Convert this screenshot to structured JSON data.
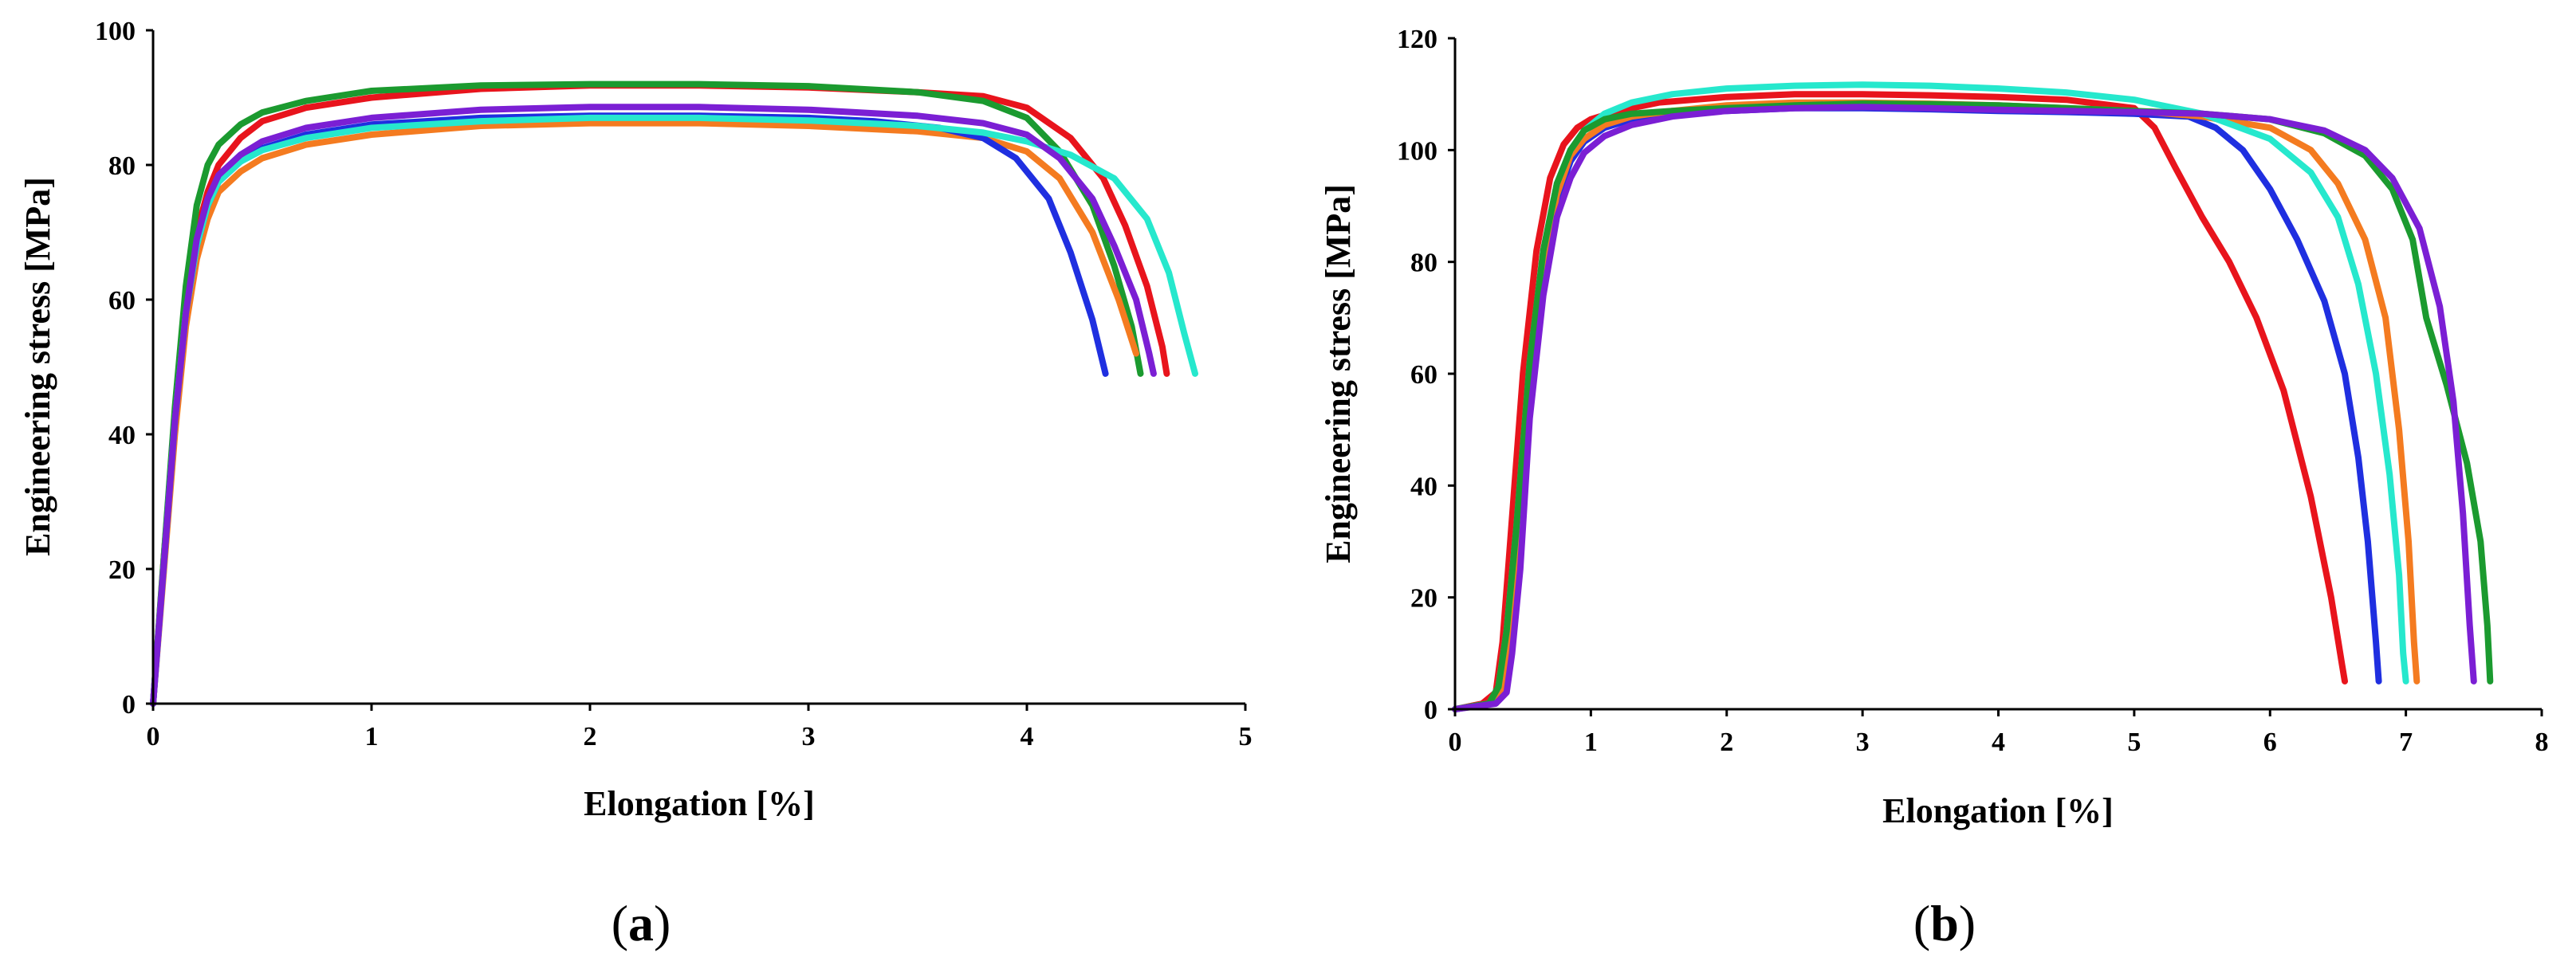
{
  "chart_data": [
    {
      "id": "a",
      "type": "line",
      "caption_letter": "a",
      "xlabel": "Elongation [%]",
      "ylabel": "Engineering stress [MPa]",
      "xlim": [
        0,
        5
      ],
      "ylim": [
        0,
        100
      ],
      "xticks": [
        0,
        1,
        2,
        3,
        4,
        5
      ],
      "yticks": [
        0,
        20,
        40,
        60,
        80,
        100
      ],
      "grid": false,
      "series": [
        {
          "name": "red",
          "color": "#e8141c",
          "x": [
            0,
            0.05,
            0.1,
            0.15,
            0.2,
            0.25,
            0.3,
            0.4,
            0.5,
            0.7,
            1,
            1.5,
            2,
            2.5,
            3,
            3.5,
            3.8,
            4.0,
            4.2,
            4.35,
            4.45,
            4.55,
            4.62,
            4.64
          ],
          "y": [
            0,
            22,
            42,
            58,
            70,
            76,
            80,
            84,
            86.5,
            88.5,
            90,
            91.3,
            91.8,
            91.8,
            91.5,
            90.8,
            90.2,
            88.5,
            84,
            78,
            71,
            62,
            53,
            49
          ]
        },
        {
          "name": "green",
          "color": "#1b9a2f",
          "x": [
            0,
            0.05,
            0.1,
            0.15,
            0.2,
            0.25,
            0.3,
            0.4,
            0.5,
            0.7,
            1,
            1.5,
            2,
            2.5,
            3,
            3.5,
            3.8,
            4.0,
            4.15,
            4.3,
            4.4,
            4.48,
            4.52
          ],
          "y": [
            0,
            22,
            44,
            62,
            74,
            80,
            83,
            86,
            87.8,
            89.5,
            91,
            91.8,
            92,
            92,
            91.7,
            90.8,
            89.5,
            87,
            82,
            74,
            65,
            56,
            49
          ]
        },
        {
          "name": "orange",
          "color": "#f47b20",
          "x": [
            0,
            0.05,
            0.1,
            0.15,
            0.2,
            0.25,
            0.3,
            0.4,
            0.5,
            0.7,
            1,
            1.5,
            2,
            2.5,
            3,
            3.5,
            3.8,
            4.0,
            4.15,
            4.3,
            4.42,
            4.5
          ],
          "y": [
            0,
            20,
            40,
            56,
            66,
            72,
            76,
            79,
            81,
            83,
            84.5,
            85.8,
            86.2,
            86.2,
            85.8,
            85,
            84,
            82,
            78,
            70,
            60,
            52
          ]
        },
        {
          "name": "blue",
          "color": "#1f2fe0",
          "x": [
            0,
            0.05,
            0.1,
            0.15,
            0.2,
            0.25,
            0.3,
            0.4,
            0.5,
            0.7,
            1,
            1.5,
            2,
            2.5,
            3,
            3.3,
            3.6,
            3.8,
            3.95,
            4.1,
            4.2,
            4.3,
            4.36
          ],
          "y": [
            0,
            21,
            42,
            58,
            68,
            74,
            77.5,
            80.5,
            82.5,
            84.5,
            86,
            87,
            87.3,
            87.3,
            87,
            86.5,
            85.5,
            84,
            81,
            75,
            67,
            57,
            49
          ]
        },
        {
          "name": "cyan",
          "color": "#26e8cd",
          "x": [
            0,
            0.05,
            0.1,
            0.15,
            0.2,
            0.25,
            0.3,
            0.4,
            0.5,
            0.7,
            1,
            1.5,
            2,
            2.5,
            3,
            3.5,
            3.8,
            4.0,
            4.2,
            4.4,
            4.55,
            4.65,
            4.72,
            4.77
          ],
          "y": [
            0,
            21,
            42,
            58,
            68,
            74,
            77.5,
            80.5,
            82.2,
            84,
            85.5,
            86.5,
            87,
            87,
            86.6,
            85.8,
            84.8,
            83.5,
            81.5,
            78,
            72,
            64,
            55,
            49
          ]
        },
        {
          "name": "purple",
          "color": "#7b1fd4",
          "x": [
            0,
            0.05,
            0.1,
            0.15,
            0.2,
            0.25,
            0.3,
            0.4,
            0.5,
            0.7,
            1,
            1.5,
            2,
            2.5,
            3,
            3.5,
            3.8,
            4.0,
            4.15,
            4.3,
            4.4,
            4.5,
            4.56,
            4.58
          ],
          "y": [
            0,
            21,
            42,
            58,
            69,
            75,
            78.5,
            81.5,
            83.5,
            85.5,
            87,
            88.2,
            88.6,
            88.6,
            88.2,
            87.3,
            86.2,
            84.5,
            81,
            75,
            68,
            60,
            52,
            49
          ]
        }
      ]
    },
    {
      "id": "b",
      "type": "line",
      "caption_letter": "b",
      "xlabel": "Elongation [%]",
      "ylabel": "Engineering stress [MPa]",
      "xlim": [
        0,
        8
      ],
      "ylim": [
        0,
        120
      ],
      "xticks": [
        0,
        1,
        2,
        3,
        4,
        5,
        6,
        7,
        8
      ],
      "yticks": [
        0,
        20,
        40,
        60,
        80,
        100,
        120
      ],
      "grid": false,
      "series": [
        {
          "name": "red",
          "color": "#e8141c",
          "x": [
            0,
            0.2,
            0.3,
            0.35,
            0.4,
            0.5,
            0.6,
            0.7,
            0.8,
            0.9,
            1.0,
            1.2,
            1.5,
            2,
            2.5,
            3,
            3.5,
            4,
            4.5,
            5,
            5.15,
            5.3,
            5.5,
            5.7,
            5.9,
            6.1,
            6.3,
            6.45,
            6.53,
            6.55
          ],
          "y": [
            0,
            1,
            3,
            12,
            28,
            60,
            82,
            95,
            101,
            104,
            105.5,
            107,
            108.5,
            109.5,
            110,
            110,
            109.8,
            109.5,
            109,
            107.5,
            104,
            97,
            88,
            80,
            70,
            57,
            38,
            20,
            8,
            5
          ]
        },
        {
          "name": "blue",
          "color": "#1f2fe0",
          "x": [
            0,
            0.25,
            0.35,
            0.4,
            0.45,
            0.55,
            0.65,
            0.75,
            0.85,
            0.95,
            1.1,
            1.3,
            1.6,
            2,
            2.5,
            3,
            3.5,
            4,
            4.5,
            5,
            5.4,
            5.6,
            5.8,
            6.0,
            6.2,
            6.4,
            6.55,
            6.65,
            6.72,
            6.78,
            6.8
          ],
          "y": [
            0,
            1,
            3,
            10,
            25,
            55,
            78,
            91,
            98,
            101.5,
            104,
            105.5,
            106.5,
            107,
            107.5,
            107.5,
            107.3,
            107,
            106.8,
            106.5,
            106,
            104,
            100,
            93,
            84,
            73,
            60,
            45,
            30,
            12,
            5
          ]
        },
        {
          "name": "orange",
          "color": "#f47b20",
          "x": [
            0,
            0.25,
            0.35,
            0.4,
            0.45,
            0.55,
            0.65,
            0.75,
            0.85,
            0.95,
            1.1,
            1.3,
            1.6,
            2,
            2.5,
            3,
            3.5,
            4,
            4.5,
            5,
            5.5,
            6.0,
            6.3,
            6.5,
            6.7,
            6.85,
            6.95,
            7.02,
            7.06,
            7.08
          ],
          "y": [
            0,
            1,
            3,
            10,
            26,
            58,
            80,
            92,
            99,
            102,
            104.5,
            106,
            107,
            108,
            108.5,
            108.5,
            108.3,
            108,
            107.5,
            107,
            106,
            104,
            100,
            94,
            84,
            70,
            50,
            30,
            12,
            5
          ]
        },
        {
          "name": "cyan",
          "color": "#26e8cd",
          "x": [
            0,
            0.25,
            0.32,
            0.38,
            0.45,
            0.55,
            0.65,
            0.75,
            0.85,
            0.95,
            1.1,
            1.3,
            1.6,
            2,
            2.5,
            3,
            3.5,
            4,
            4.5,
            5,
            5.5,
            6.0,
            6.3,
            6.5,
            6.65,
            6.78,
            6.88,
            6.95,
            6.98,
            7.0
          ],
          "y": [
            0,
            1,
            4,
            14,
            32,
            62,
            82,
            94,
            100,
            103.5,
            106.5,
            108.5,
            110,
            111,
            111.5,
            111.7,
            111.5,
            111,
            110.3,
            109,
            106.5,
            102,
            96,
            88,
            76,
            60,
            42,
            24,
            10,
            5
          ]
        },
        {
          "name": "green",
          "color": "#1b9a2f",
          "x": [
            0,
            0.25,
            0.32,
            0.38,
            0.45,
            0.55,
            0.65,
            0.75,
            0.85,
            0.95,
            1.1,
            1.3,
            1.6,
            2,
            2.5,
            3,
            3.5,
            4,
            4.5,
            5,
            5.5,
            6.0,
            6.4,
            6.7,
            6.9,
            7.05,
            7.15,
            7.3,
            7.45,
            7.55,
            7.6,
            7.62
          ],
          "y": [
            0,
            1,
            4,
            14,
            32,
            62,
            82,
            94,
            100,
            103.5,
            105.5,
            106.5,
            107,
            107.5,
            108,
            108.3,
            108.2,
            108,
            107.5,
            107,
            106.5,
            105.5,
            103,
            99,
            93,
            84,
            70,
            58,
            44,
            30,
            15,
            5
          ]
        },
        {
          "name": "purple",
          "color": "#7b1fd4",
          "x": [
            0,
            0.3,
            0.38,
            0.42,
            0.48,
            0.55,
            0.65,
            0.75,
            0.85,
            0.95,
            1.1,
            1.3,
            1.6,
            2,
            2.5,
            3,
            3.5,
            4,
            4.5,
            5,
            5.5,
            6.0,
            6.4,
            6.7,
            6.9,
            7.1,
            7.25,
            7.35,
            7.42,
            7.47,
            7.5
          ],
          "y": [
            0,
            1,
            3,
            10,
            25,
            52,
            74,
            88,
            95,
            99.5,
            102.5,
            104.5,
            106,
            107,
            107.5,
            107.7,
            107.5,
            107.2,
            107,
            106.8,
            106.5,
            105.5,
            103.5,
            100,
            95,
            86,
            72,
            55,
            35,
            15,
            5
          ]
        }
      ]
    }
  ]
}
